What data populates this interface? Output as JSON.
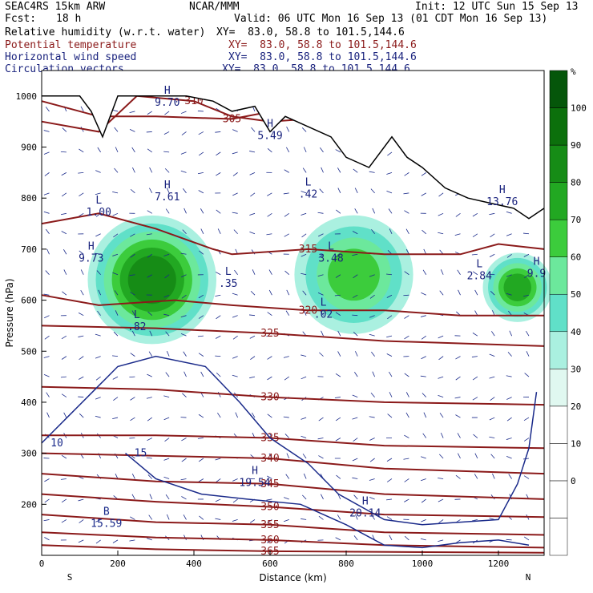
{
  "header": {
    "model": "SEAC4RS 15km ARW",
    "center": "NCAR/MMM",
    "init": "Init: 12 UTC Sun 15 Sep 13",
    "fcst_label": "Fcst:",
    "fcst_value": "18 h",
    "valid": "Valid: 06 UTC Mon 16 Sep 13 (01 CDT Mon 16 Sep 13)",
    "fields": [
      {
        "name": "Relative humidity (w.r.t. water)",
        "xy": "XY=  83.0, 58.8 to 101.5,144.6",
        "color": "#000000"
      },
      {
        "name": "Potential temperature",
        "xy": "XY=  83.0, 58.8 to 101.5,144.6",
        "color": "#8b1a1a"
      },
      {
        "name": "Horizontal wind speed",
        "xy": "XY=  83.0, 58.8 to 101.5,144.6",
        "color": "#1a237e"
      },
      {
        "name": "Circulation vectors",
        "xy": "XY=  83.0, 58.8 to 101.5,144.6",
        "color": "#1a237e"
      }
    ]
  },
  "colors": {
    "theta": "#8b1a1a",
    "wind": "#1a2a8a",
    "terrain": "#000000",
    "rh_scale": [
      "#ffffff",
      "#ffffff",
      "#ffffff",
      "#ffffff",
      "#e0f8f0",
      "#aaf0e0",
      "#60e0c8",
      "#6ce89c",
      "#3ccc3c",
      "#22a822",
      "#168c16",
      "#0c700c",
      "#05560a"
    ]
  },
  "chart_data": {
    "type": "heatmap",
    "xlabel": "Distance (km)",
    "ylabel": "Pressure (hPa)",
    "xlim": [
      0,
      1320
    ],
    "ylim": [
      1050,
      100
    ],
    "x_ticks": [
      "0",
      "200",
      "400",
      "600",
      "800",
      "1000",
      "1200"
    ],
    "y_ticks": [
      "200",
      "300",
      "400",
      "500",
      "600",
      "700",
      "800",
      "900",
      "1000"
    ],
    "x_end_labels": {
      "left": "S",
      "right": "N"
    },
    "colorbar": {
      "unit": "%",
      "levels": [
        "0",
        "10",
        "20",
        "30",
        "40",
        "50",
        "60",
        "70",
        "80",
        "90",
        "100"
      ]
    },
    "rh_regions": [
      {
        "x0": 160,
        "x1": 420,
        "p_top": 560,
        "p_bot": 720,
        "level": 80
      },
      {
        "x0": 700,
        "x1": 940,
        "p_top": 580,
        "p_bot": 720,
        "level": 60
      },
      {
        "x0": 1180,
        "x1": 1320,
        "p_top": 560,
        "p_bot": 690,
        "level": 70
      }
    ],
    "theta_contours": [
      {
        "label": "305",
        "points": [
          [
            0,
            990
          ],
          [
            150,
            960
          ],
          [
            300,
            960
          ],
          [
            500,
            955
          ],
          [
            640,
            975
          ],
          [
            700,
            975
          ]
        ]
      },
      {
        "label": "310",
        "points": [
          [
            0,
            950
          ],
          [
            150,
            930
          ],
          [
            250,
            1000
          ],
          [
            400,
            990
          ],
          [
            500,
            960
          ],
          [
            600,
            950
          ],
          [
            700,
            955
          ]
        ]
      },
      {
        "label": "315",
        "points": [
          [
            0,
            750
          ],
          [
            150,
            770
          ],
          [
            300,
            740
          ],
          [
            450,
            700
          ],
          [
            500,
            690
          ],
          [
            700,
            700
          ],
          [
            900,
            690
          ],
          [
            1100,
            690
          ],
          [
            1200,
            710
          ],
          [
            1320,
            700
          ]
        ]
      },
      {
        "label": "320",
        "points": [
          [
            0,
            610
          ],
          [
            150,
            590
          ],
          [
            350,
            600
          ],
          [
            500,
            590
          ],
          [
            700,
            580
          ],
          [
            900,
            580
          ],
          [
            1100,
            570
          ],
          [
            1320,
            570
          ]
        ]
      },
      {
        "label": "325",
        "points": [
          [
            0,
            550
          ],
          [
            300,
            545
          ],
          [
            600,
            535
          ],
          [
            900,
            520
          ],
          [
            1320,
            510
          ]
        ]
      },
      {
        "label": "330",
        "points": [
          [
            0,
            430
          ],
          [
            300,
            425
          ],
          [
            600,
            410
          ],
          [
            900,
            400
          ],
          [
            1320,
            395
          ]
        ]
      },
      {
        "label": "335",
        "points": [
          [
            0,
            335
          ],
          [
            300,
            335
          ],
          [
            600,
            330
          ],
          [
            900,
            315
          ],
          [
            1320,
            310
          ]
        ]
      },
      {
        "label": "340",
        "points": [
          [
            0,
            300
          ],
          [
            300,
            295
          ],
          [
            600,
            290
          ],
          [
            900,
            270
          ],
          [
            1320,
            260
          ]
        ]
      },
      {
        "label": "345",
        "points": [
          [
            0,
            260
          ],
          [
            300,
            245
          ],
          [
            600,
            240
          ],
          [
            900,
            220
          ],
          [
            1320,
            210
          ]
        ]
      },
      {
        "label": "350",
        "points": [
          [
            0,
            220
          ],
          [
            300,
            205
          ],
          [
            600,
            195
          ],
          [
            900,
            180
          ],
          [
            1320,
            175
          ]
        ]
      },
      {
        "label": "355",
        "points": [
          [
            0,
            180
          ],
          [
            300,
            165
          ],
          [
            600,
            160
          ],
          [
            900,
            145
          ],
          [
            1320,
            140
          ]
        ]
      },
      {
        "label": "360",
        "points": [
          [
            0,
            145
          ],
          [
            300,
            135
          ],
          [
            600,
            130
          ],
          [
            900,
            120
          ],
          [
            1320,
            115
          ]
        ]
      },
      {
        "label": "365",
        "points": [
          [
            0,
            120
          ],
          [
            300,
            112
          ],
          [
            600,
            108
          ],
          [
            1320,
            105
          ]
        ]
      }
    ],
    "wind_contours": [
      {
        "label": "10",
        "points": [
          [
            0,
            320
          ],
          [
            80,
            380
          ],
          [
            200,
            470
          ],
          [
            300,
            490
          ],
          [
            430,
            470
          ],
          [
            520,
            400
          ],
          [
            600,
            330
          ],
          [
            700,
            280
          ],
          [
            780,
            220
          ],
          [
            900,
            170
          ],
          [
            1000,
            160
          ],
          [
            1100,
            165
          ],
          [
            1200,
            170
          ],
          [
            1250,
            240
          ],
          [
            1280,
            310
          ],
          [
            1300,
            420
          ]
        ]
      },
      {
        "label": "15",
        "points": [
          [
            220,
            300
          ],
          [
            300,
            250
          ],
          [
            420,
            220
          ],
          [
            540,
            210
          ],
          [
            680,
            200
          ],
          [
            800,
            160
          ],
          [
            900,
            120
          ],
          [
            1000,
            115
          ],
          [
            1100,
            125
          ],
          [
            1200,
            130
          ],
          [
            1280,
            120
          ]
        ]
      }
    ],
    "extrema": [
      {
        "kind": "H",
        "value": "9.73",
        "x": 130,
        "p": 690
      },
      {
        "kind": "L",
        "value": "1.00",
        "x": 150,
        "p": 780
      },
      {
        "kind": "H",
        "value": "7.61",
        "x": 330,
        "p": 810
      },
      {
        "kind": "L",
        "value": ".82",
        "x": 250,
        "p": 555
      },
      {
        "kind": "L",
        "value": ".35",
        "x": 490,
        "p": 640
      },
      {
        "kind": "L",
        "value": "3.48",
        "x": 760,
        "p": 690
      },
      {
        "kind": "L",
        "value": ".02",
        "x": 740,
        "p": 580
      },
      {
        "kind": "L",
        "value": ".42",
        "x": 700,
        "p": 815
      },
      {
        "kind": "H",
        "value": "5.49",
        "x": 600,
        "p": 930
      },
      {
        "kind": "H",
        "value": "9.70",
        "x": 330,
        "p": 995
      },
      {
        "kind": "L",
        "value": "2.84",
        "x": 1150,
        "p": 655
      },
      {
        "kind": "H",
        "value": "9.9",
        "x": 1300,
        "p": 660
      },
      {
        "kind": "H",
        "value": "13.76",
        "x": 1210,
        "p": 800
      },
      {
        "kind": "B",
        "value": "15.59",
        "x": 170,
        "p": 170
      },
      {
        "kind": "H",
        "value": "20.14",
        "x": 850,
        "p": 190
      },
      {
        "kind": "H",
        "value": "19.54",
        "x": 560,
        "p": 250
      }
    ],
    "terrain": [
      [
        0,
        1000
      ],
      [
        100,
        1000
      ],
      [
        130,
        970
      ],
      [
        160,
        920
      ],
      [
        200,
        1000
      ],
      [
        250,
        1000
      ],
      [
        380,
        1000
      ],
      [
        450,
        990
      ],
      [
        500,
        970
      ],
      [
        560,
        980
      ],
      [
        600,
        930
      ],
      [
        640,
        960
      ],
      [
        700,
        940
      ],
      [
        760,
        920
      ],
      [
        800,
        880
      ],
      [
        860,
        860
      ],
      [
        920,
        920
      ],
      [
        960,
        880
      ],
      [
        1000,
        860
      ],
      [
        1060,
        820
      ],
      [
        1120,
        800
      ],
      [
        1180,
        790
      ],
      [
        1240,
        780
      ],
      [
        1280,
        760
      ],
      [
        1320,
        780
      ]
    ]
  }
}
